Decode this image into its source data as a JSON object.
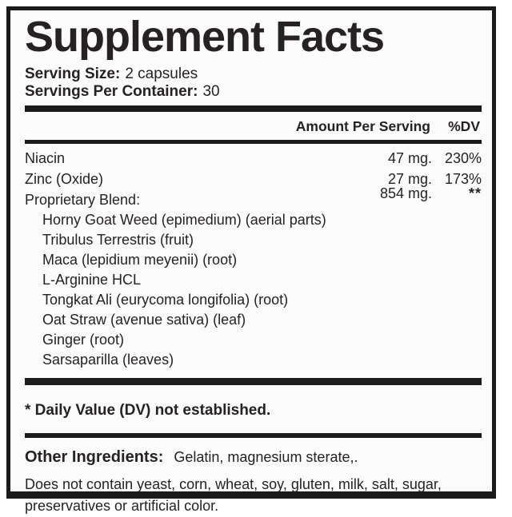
{
  "title": "Supplement Facts",
  "serving": {
    "size_label": "Serving Size:",
    "size_value": "2 capsules",
    "container_label": "Servings Per Container:",
    "container_value": "30"
  },
  "table": {
    "amount_header": "Amount Per Serving",
    "dv_header": "%DV",
    "rows": [
      {
        "name": "Niacin",
        "amount": "47 mg.",
        "dv": "230%"
      },
      {
        "name": "Zinc (Oxide)",
        "amount": "27 mg.",
        "dv": "173%"
      },
      {
        "name": "Proprietary Blend:",
        "amount": "854 mg.",
        "dv": "**"
      }
    ],
    "blend_items": [
      "Horny Goat Weed (epimedium) (aerial parts)",
      "Tribulus Terrestris (fruit)",
      "Maca (lepidium meyenii) (root)",
      "L-Arginine HCL",
      "Tongkat Ali (eurycoma longifolia) (root)",
      "Oat Straw (avenue sativa) (leaf)",
      "Ginger (root)",
      "Sarsaparilla (leaves)"
    ]
  },
  "footnote": "* Daily Value (DV) not established.",
  "other_ingredients": {
    "label": "Other Ingredients:",
    "value": "Gelatin, magnesium sterate,."
  },
  "disclaimer": "Does not contain yeast, corn, wheat, soy, gluten, milk, salt, sugar, preservatives or artificial color.",
  "colors": {
    "border": "#1a1a1a",
    "bars": "#1c1c1c",
    "text": "#262223",
    "background": "#fcfbfb"
  }
}
